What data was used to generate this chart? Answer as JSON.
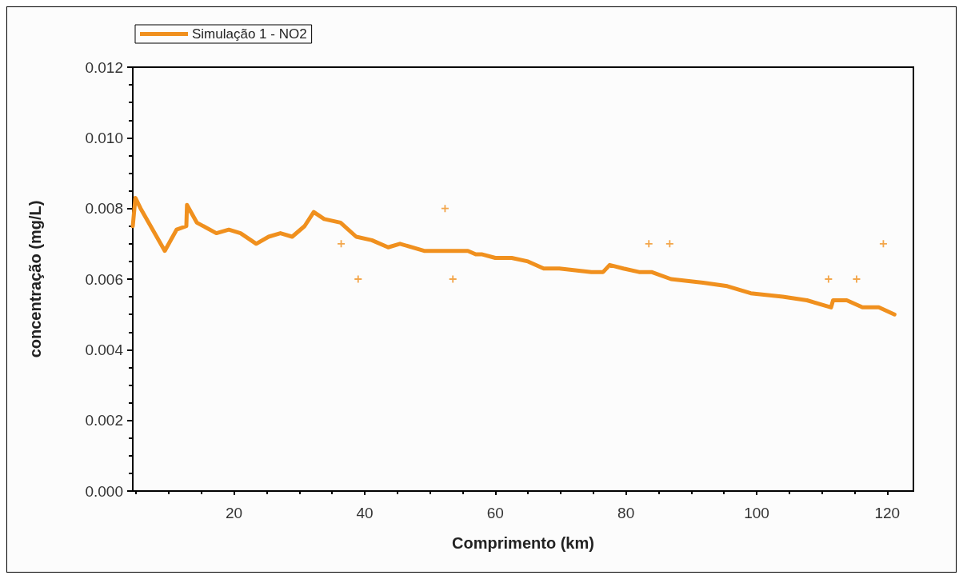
{
  "chart_data": {
    "type": "line",
    "xlabel": "Comprimento (km)",
    "ylabel": "concentração (mg/L)",
    "xlim": [
      4.5,
      124
    ],
    "ylim": [
      0,
      0.012
    ],
    "xticks": [
      20,
      40,
      60,
      80,
      100,
      120
    ],
    "yticks": [
      {
        "value": 0,
        "label": "0.000"
      },
      0.002,
      0.004,
      0.006,
      0.008,
      {
        "value": 0.01,
        "label": "0.010"
      },
      0.012
    ],
    "grid": false,
    "legend": "top left",
    "series": [
      {
        "name": "Simulação 1 - NO2",
        "color": "#f0901e",
        "marker": "none",
        "line_style": "solid",
        "x": [
          4.5,
          4.9,
          5.7,
          9.4,
          11.2,
          12.7,
          12.8,
          14.3,
          17.3,
          19.2,
          21,
          23.4,
          25.3,
          27.1,
          28.9,
          30.8,
          32.2,
          33.8,
          36.3,
          38.7,
          41.1,
          43.6,
          45.4,
          49.1,
          52.7,
          55.8,
          57,
          58,
          60,
          62.5,
          65,
          67.4,
          69.8,
          74.7,
          76.5,
          77.5,
          79.6,
          82,
          83.9,
          86.9,
          91.8,
          95.5,
          99.1,
          104,
          107.7,
          111.4,
          111.7,
          113.8,
          116.2,
          118.7,
          121.1
        ],
        "values": [
          0.0075,
          0.0083,
          0.008,
          0.0068,
          0.0074,
          0.0075,
          0.0081,
          0.0076,
          0.0073,
          0.0074,
          0.0073,
          0.007,
          0.0072,
          0.0073,
          0.0072,
          0.0075,
          0.0079,
          0.0077,
          0.0076,
          0.0072,
          0.0071,
          0.0069,
          0.007,
          0.0068,
          0.0068,
          0.0068,
          0.0067,
          0.0067,
          0.0066,
          0.0066,
          0.0065,
          0.0063,
          0.0063,
          0.0062,
          0.0062,
          0.0064,
          0.0063,
          0.0062,
          0.0062,
          0.006,
          0.0059,
          0.0058,
          0.0056,
          0.0055,
          0.0054,
          0.0052,
          0.0054,
          0.0054,
          0.0052,
          0.0052,
          0.005
        ]
      },
      {
        "type": "scatter",
        "color": "#f0901e",
        "marker": "cross",
        "x": [
          36.4,
          39,
          52.3,
          53.5,
          83.5,
          86.7,
          111,
          115.3,
          119.4
        ],
        "values": [
          0.007,
          0.006,
          0.008,
          0.006,
          0.007,
          0.007,
          0.006,
          0.006,
          0.007
        ]
      }
    ]
  }
}
